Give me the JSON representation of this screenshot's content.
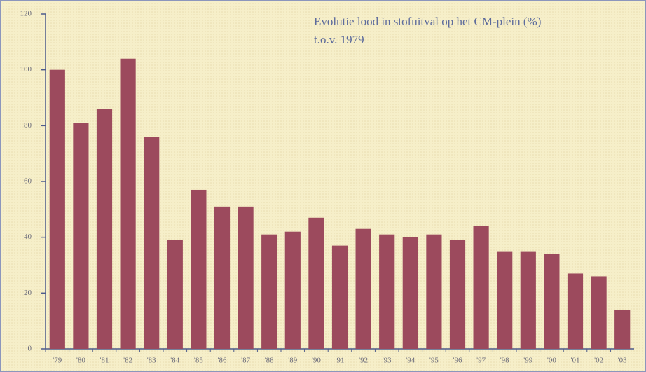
{
  "chart_data": {
    "type": "bar",
    "title": "Evolutie lood in stofuitval op het CM-plein (%)",
    "subtitle": "t.o.v. 1979",
    "categories": [
      "'79",
      "'80",
      "'81",
      "'82",
      "'83",
      "'84",
      "'85",
      "'86",
      "'87",
      "'88",
      "'89",
      "'90",
      "'91",
      "'92",
      "'93",
      "'94",
      "'95",
      "'96",
      "'97",
      "'98",
      "'99",
      "'00",
      "'01",
      "'02",
      "'03"
    ],
    "values": [
      100,
      81,
      86,
      104,
      76,
      39,
      57,
      51,
      51,
      41,
      42,
      47,
      37,
      43,
      41,
      40,
      41,
      39,
      44,
      35,
      35,
      34,
      27,
      26,
      14
    ],
    "color": "#9c4a5d",
    "ylim": [
      0,
      120
    ],
    "yticks": [
      0,
      20,
      40,
      60,
      80,
      100,
      120
    ],
    "grid": false
  }
}
